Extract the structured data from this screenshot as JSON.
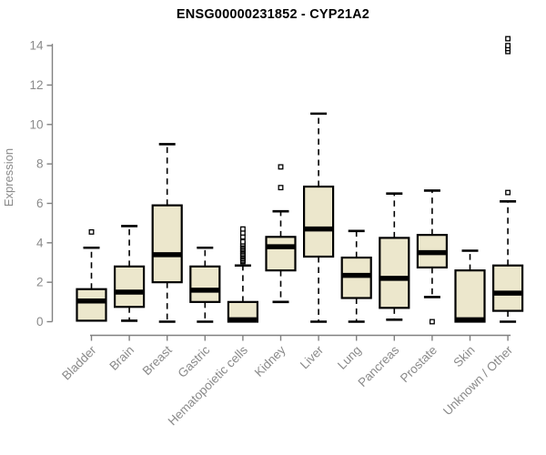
{
  "title": "ENSG00000231852 - CYP21A2",
  "colors": {
    "background": "#ffffff",
    "box_fill": "#ece7cc",
    "box_border": "#000000",
    "median": "#000000",
    "whisker": "#000000",
    "outlier_fill": "#ffffff",
    "axis_line": "#808080",
    "tick_label": "#8a8a8a",
    "title_text": "#000000"
  },
  "chart_data": {
    "type": "boxplot",
    "title": "ENSG00000231852 - CYP21A2",
    "xlabel": "",
    "ylabel": "Expression",
    "ylim": [
      0,
      14.5
    ],
    "yticks": [
      0,
      2,
      4,
      6,
      8,
      10,
      12,
      14
    ],
    "grid": false,
    "legend": null,
    "categories": [
      "Bladder",
      "Brain",
      "Breast",
      "Gastric",
      "Hematopoietic cells",
      "Kidney",
      "Liver",
      "Lung",
      "Pancreas",
      "Prostate",
      "Skin",
      "Unknown / Other"
    ],
    "series": [
      {
        "name": "Bladder",
        "min": 0.05,
        "q1": 0.05,
        "median": 1.05,
        "q3": 1.65,
        "max": 3.75,
        "outliers": [
          4.55
        ]
      },
      {
        "name": "Brain",
        "min": 0.05,
        "q1": 0.75,
        "median": 1.5,
        "q3": 2.8,
        "max": 4.85,
        "outliers": []
      },
      {
        "name": "Breast",
        "min": 0.0,
        "q1": 2.0,
        "median": 3.4,
        "q3": 5.9,
        "max": 9.0,
        "outliers": []
      },
      {
        "name": "Gastric",
        "min": 0.0,
        "q1": 1.0,
        "median": 1.6,
        "q3": 2.8,
        "max": 3.75,
        "outliers": []
      },
      {
        "name": "Hematopoietic cells",
        "min": 0.0,
        "q1": 0.0,
        "median": 0.1,
        "q3": 1.0,
        "max": 2.85,
        "outliers": [
          3.05,
          3.12,
          3.2,
          3.28,
          3.35,
          3.42,
          3.5,
          3.58,
          3.65,
          3.72,
          3.8,
          3.88,
          3.95,
          4.05,
          4.3,
          4.5,
          4.7
        ]
      },
      {
        "name": "Kidney",
        "min": 1.0,
        "q1": 2.6,
        "median": 3.8,
        "q3": 4.3,
        "max": 5.6,
        "outliers": [
          6.8,
          7.85
        ]
      },
      {
        "name": "Liver",
        "min": 0.0,
        "q1": 3.3,
        "median": 4.7,
        "q3": 6.85,
        "max": 10.55,
        "outliers": []
      },
      {
        "name": "Lung",
        "min": 0.0,
        "q1": 1.2,
        "median": 2.35,
        "q3": 3.25,
        "max": 4.6,
        "outliers": []
      },
      {
        "name": "Pancreas",
        "min": 0.1,
        "q1": 0.7,
        "median": 2.2,
        "q3": 4.25,
        "max": 6.5,
        "outliers": []
      },
      {
        "name": "Prostate",
        "min": 1.25,
        "q1": 2.75,
        "median": 3.5,
        "q3": 4.4,
        "max": 6.65,
        "outliers": [
          0.0
        ]
      },
      {
        "name": "Skin",
        "min": 0.0,
        "q1": 0.0,
        "median": 0.1,
        "q3": 2.6,
        "max": 3.6,
        "outliers": []
      },
      {
        "name": "Unknown / Other",
        "min": 0.0,
        "q1": 0.55,
        "median": 1.45,
        "q3": 2.85,
        "max": 6.1,
        "outliers": [
          6.55,
          13.7,
          13.85,
          14.0,
          14.35
        ]
      }
    ]
  }
}
